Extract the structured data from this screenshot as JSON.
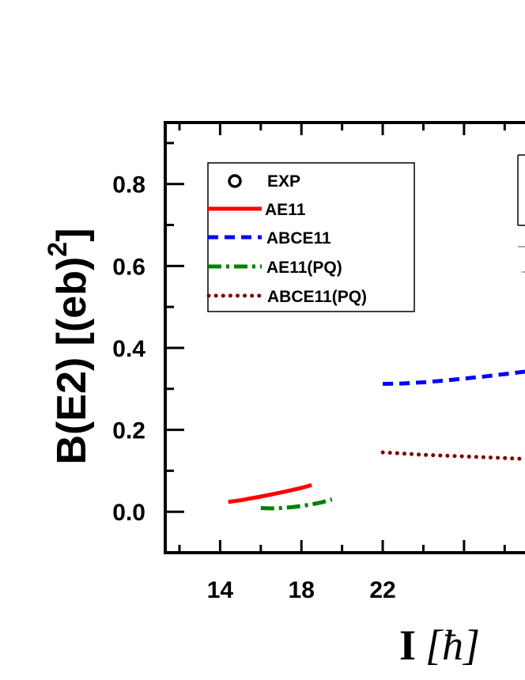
{
  "chart_data": {
    "type": "line",
    "xlabel": {
      "main": "I",
      "unit": "[ħ]"
    },
    "ylabel": {
      "main": "B(E2) [(eb)",
      "close": "]",
      "sup": "2"
    },
    "xlim": [
      11.3,
      29
    ],
    "ylim": [
      -0.1,
      0.95
    ],
    "x_ticks": [
      14,
      18,
      22
    ],
    "y_ticks": [
      "0.0",
      "0.2",
      "0.4",
      "0.6",
      "0.8"
    ],
    "legend": {
      "placement": "top-left",
      "entries": [
        {
          "label": "EXP",
          "color": "#000000",
          "style": "marker-circle"
        },
        {
          "label": "AE11",
          "color": "#ff0000",
          "style": "solid"
        },
        {
          "label": "ABCE11",
          "color": "#0000ff",
          "style": "dash"
        },
        {
          "label": "AE11(PQ)",
          "color": "#008000",
          "style": "dashdot"
        },
        {
          "label": "ABCE11(PQ)",
          "color": "#800000",
          "style": "dot"
        }
      ]
    },
    "series": [
      {
        "name": "AE11",
        "color": "#ff0000",
        "style": "solid",
        "x": [
          14.4,
          15,
          16,
          17,
          18,
          18.5
        ],
        "y": [
          0.024,
          0.028,
          0.037,
          0.047,
          0.058,
          0.065
        ]
      },
      {
        "name": "ABCE11",
        "color": "#0000ff",
        "style": "dash",
        "x": [
          22,
          23,
          24,
          25,
          26,
          27,
          28,
          29
        ],
        "y": [
          0.312,
          0.313,
          0.316,
          0.32,
          0.325,
          0.33,
          0.336,
          0.342
        ]
      },
      {
        "name": "AE11(PQ)",
        "color": "#008000",
        "style": "dashdot",
        "x": [
          16,
          16.5,
          17,
          17.5,
          18,
          18.5,
          19,
          19.5
        ],
        "y": [
          0.009,
          0.008,
          0.009,
          0.011,
          0.014,
          0.018,
          0.023,
          0.03
        ]
      },
      {
        "name": "ABCE11(PQ)",
        "color": "#800000",
        "style": "dot",
        "x": [
          22,
          23,
          24,
          25,
          26,
          27,
          28,
          29
        ],
        "y": [
          0.145,
          0.142,
          0.139,
          0.137,
          0.135,
          0.133,
          0.131,
          0.129
        ]
      }
    ]
  }
}
